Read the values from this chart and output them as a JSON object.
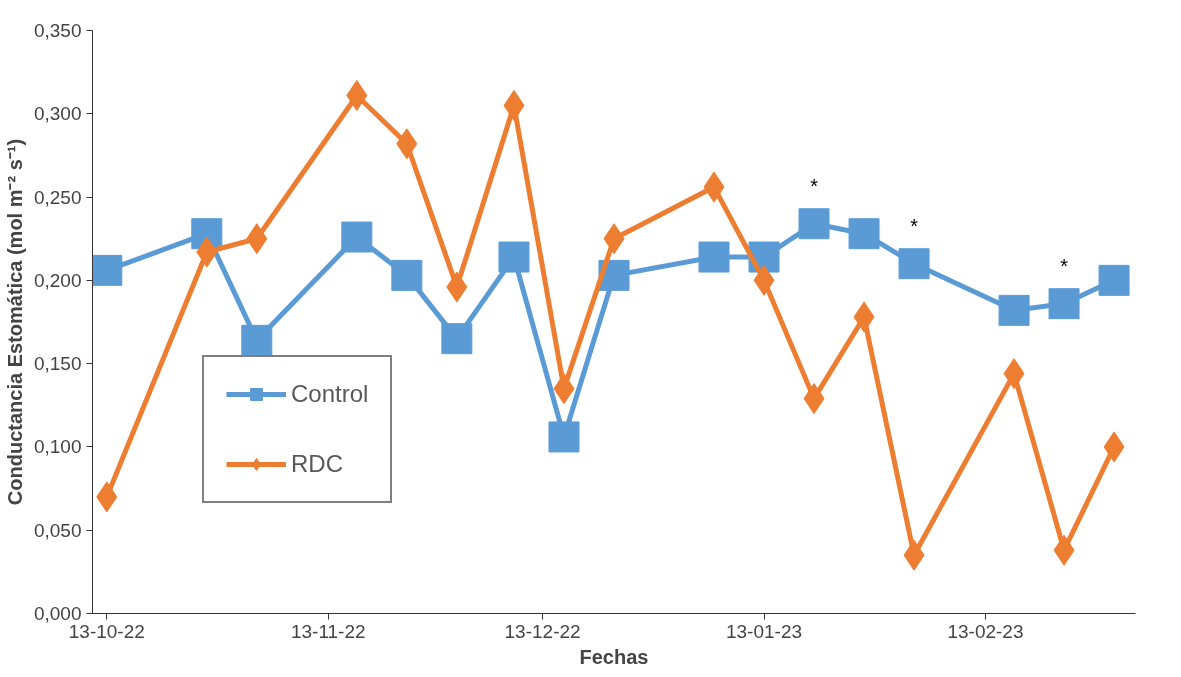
{
  "chart_data": {
    "type": "line",
    "xlabel": "Fechas",
    "ylabel": "Conductancia Estomática (mol m⁻² s⁻¹)",
    "x": [
      "2022-10-13",
      "2022-10-27",
      "2022-11-03",
      "2022-11-17",
      "2022-11-24",
      "2022-12-01",
      "2022-12-09",
      "2022-12-16",
      "2022-12-23",
      "2023-01-06",
      "2023-01-13",
      "2023-01-20",
      "2023-01-27",
      "2023-02-03",
      "2023-02-17",
      "2023-02-24",
      "2023-03-03"
    ],
    "series": [
      {
        "name": "Control",
        "color": "#5b9bd5",
        "marker": "square",
        "values": [
          0.206,
          0.228,
          0.164,
          0.226,
          0.203,
          0.165,
          0.214,
          0.106,
          0.203,
          0.214,
          0.214,
          0.234,
          0.228,
          0.21,
          0.182,
          0.186,
          0.2
        ]
      },
      {
        "name": "RDC",
        "color": "#ed7d31",
        "marker": "diamond",
        "values": [
          0.07,
          0.217,
          0.225,
          0.311,
          0.282,
          0.196,
          0.305,
          0.135,
          0.225,
          0.256,
          0.2,
          0.129,
          0.178,
          0.035,
          0.144,
          0.038,
          0.1
        ]
      }
    ],
    "xlim": [
      "2022-10-11",
      "2023-03-06"
    ],
    "xticks": [
      {
        "value": "2022-10-13",
        "label": "13-10-22"
      },
      {
        "value": "2022-11-13",
        "label": "13-11-22"
      },
      {
        "value": "2022-12-13",
        "label": "13-12-22"
      },
      {
        "value": "2023-01-13",
        "label": "13-01-23"
      },
      {
        "value": "2023-02-13",
        "label": "13-02-23"
      }
    ],
    "ylim": [
      0,
      0.35
    ],
    "yticks": [
      {
        "value": 0,
        "label": "0,000"
      },
      {
        "value": 0.05,
        "label": "0,050"
      },
      {
        "value": 0.1,
        "label": "0,100"
      },
      {
        "value": 0.15,
        "label": "0,150"
      },
      {
        "value": 0.2,
        "label": "0,200"
      },
      {
        "value": 0.25,
        "label": "0,250"
      },
      {
        "value": 0.3,
        "label": "0,300"
      },
      {
        "value": 0.35,
        "label": "0,350"
      }
    ],
    "annotations": [
      {
        "text": "*",
        "x": "2023-01-20",
        "y": 0.234
      },
      {
        "text": "*",
        "x": "2023-02-03",
        "y": 0.21
      },
      {
        "text": "*",
        "x": "2023-02-24",
        "y": 0.186
      }
    ],
    "grid": false,
    "legend": "bottom left",
    "line_style": "solid"
  }
}
